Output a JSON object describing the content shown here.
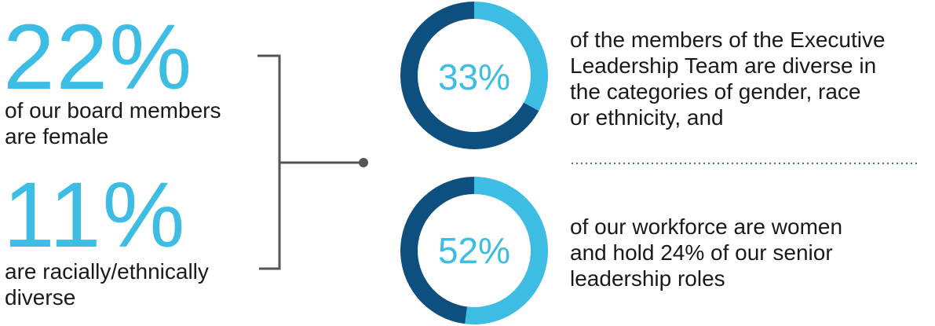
{
  "colors": {
    "light_blue": "#3dbde3",
    "dark_blue": "#0d4f7e",
    "connector_gray": "#555555",
    "text": "#1a1a1a",
    "dotted": "#2f75b5"
  },
  "left": {
    "stat1_value": "22%",
    "stat1_desc_line1": "of our board members",
    "stat1_desc_line2": "are female",
    "stat2_value": "11%",
    "stat2_desc_line1": "are racially/ethnically",
    "stat2_desc_line2": "diverse"
  },
  "right": {
    "stat1_desc_line1": "of the members of the Executive",
    "stat1_desc_line2": "Leadership Team are diverse in",
    "stat1_desc_line3": "the categories of gender, race",
    "stat1_desc_line4": "or ethnicity, and",
    "stat2_desc_line1": "of our workforce are women",
    "stat2_desc_line2": "and hold 24% of our senior",
    "stat2_desc_line3": "leadership roles"
  },
  "chart_data": [
    {
      "type": "pie",
      "style": "donut",
      "label": "33%",
      "values": [
        33,
        67
      ],
      "colors": [
        "#3dbde3",
        "#0d4f7e"
      ]
    },
    {
      "type": "pie",
      "style": "donut",
      "label": "52%",
      "values": [
        52,
        48
      ],
      "colors": [
        "#3dbde3",
        "#0d4f7e"
      ]
    }
  ]
}
